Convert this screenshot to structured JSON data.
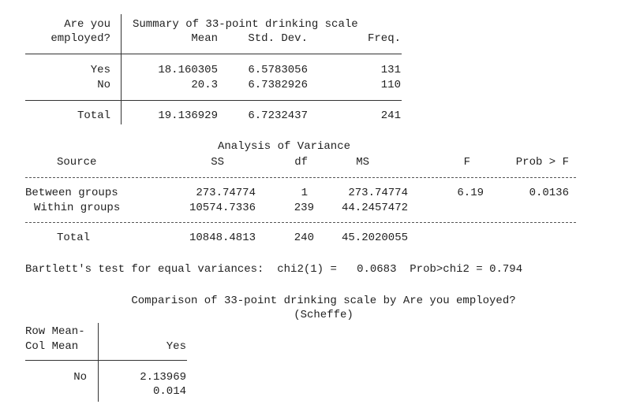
{
  "summary": {
    "row_header": [
      "Are you",
      "employed?"
    ],
    "title": "Summary of 33-point drinking scale",
    "columns": [
      "Mean",
      "Std. Dev.",
      "Freq."
    ],
    "rows": [
      {
        "label": "Yes",
        "mean": "18.160305",
        "sd": "6.5783056",
        "freq": "131"
      },
      {
        "label": "No",
        "mean": "20.3",
        "sd": "6.7382926",
        "freq": "110"
      }
    ],
    "total": {
      "label": "Total",
      "mean": "19.136929",
      "sd": "6.7232437",
      "freq": "241"
    }
  },
  "anova": {
    "title": "Analysis of Variance",
    "columns": [
      "Source",
      "SS",
      "df",
      "MS",
      "F",
      "Prob > F"
    ],
    "rows": [
      {
        "source": "Between groups",
        "ss": "273.74774",
        "df": "1",
        "ms": "273.74774",
        "f": "6.19",
        "p": "0.0136"
      },
      {
        "source": "Within groups",
        "ss": "10574.7336",
        "df": "239",
        "ms": "44.2457472",
        "f": "",
        "p": ""
      }
    ],
    "total": {
      "source": "Total",
      "ss": "10848.4813",
      "df": "240",
      "ms": "45.2020055"
    }
  },
  "bartlett": "Bartlett's test for equal variances:  chi2(1) =   0.0683  Prob>chi2 = 0.794",
  "comparison": {
    "title": "Comparison of 33-point drinking scale by Are you employed?",
    "method": "(Scheffe)",
    "row_header": [
      "Row Mean-",
      "Col Mean"
    ],
    "column": "Yes",
    "row_label": "No",
    "diff": "2.13969",
    "pvalue": "0.014"
  }
}
